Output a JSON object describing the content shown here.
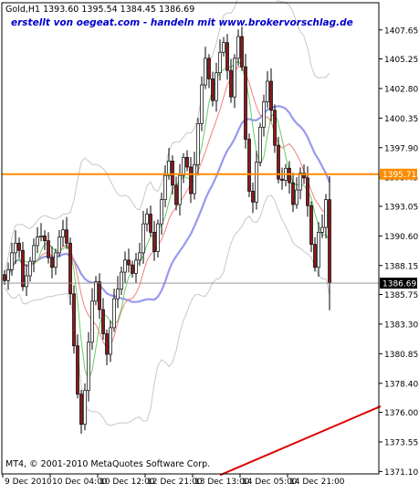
{
  "header": {
    "symbol_line": "Gold,H1  1393.60 1395.54 1384.45 1386.69",
    "watermark": "erstellt von oegeat.com - handeln mit www.brokervorschlag.de"
  },
  "footer": {
    "copyright": "MT4, © 2001-2010 MetaQuotes Software Corp."
  },
  "colors": {
    "background": "#ffffff",
    "frame": "#000000",
    "bull_candle": "#ffffff",
    "bear_candle": "#8b1a1a",
    "candle_outline": "#000000",
    "bollinger": "#c8c8c8",
    "ma_slow": "#9999ee",
    "ma_mid": "#f08080",
    "ma_fast": "#66cc66",
    "resistance_line": "#ff8c00",
    "trend_line": "#e00000",
    "watermark_text": "#0000cc",
    "price_tag_bg": "#000000",
    "price_tag_text": "#ffffff"
  },
  "chart_data": {
    "type": "candlestick",
    "symbol": "Gold",
    "timeframe": "H1",
    "ohlc_latest": {
      "open": 1393.6,
      "high": 1395.54,
      "low": 1384.45,
      "close": 1386.69
    },
    "ylim": [
      1370.9,
      1409.9
    ],
    "y_ticks": [
      1407.65,
      1405.25,
      1402.8,
      1400.35,
      1397.9,
      1395.45,
      1393.05,
      1390.6,
      1388.15,
      1385.75,
      1383.3,
      1380.85,
      1378.4,
      1376.0,
      1373.55,
      1371.1
    ],
    "y_tick_labels": [
      "1407.65",
      "1405.25",
      "1402.80",
      "1400.35",
      "1397.90",
      "1395.45",
      "1393.05",
      "1390.60",
      "1388.15",
      "1385.75",
      "1383.30",
      "1380.85",
      "1378.40",
      "1376.00",
      "1373.55",
      "1371.10"
    ],
    "x_tick_labels": [
      "9 Dec 2010",
      "10 Dec 04:00",
      "10 Dec 12:00",
      "12 Dec 21:00",
      "13 Dec 13:00",
      "14 Dec 05:00",
      "14 Dec 21:00"
    ],
    "x_tick_bars": [
      0,
      13,
      26,
      39,
      52,
      65,
      78
    ],
    "bar_count": 90,
    "closes": [
      1386.9,
      1387.8,
      1389.2,
      1390.0,
      1389.4,
      1386.4,
      1387.3,
      1388.5,
      1389.8,
      1390.5,
      1390.6,
      1390.2,
      1388.8,
      1388.0,
      1389.2,
      1390.5,
      1391.1,
      1390.0,
      1385.8,
      1381.5,
      1377.5,
      1375.0,
      1377.8,
      1381.8,
      1385.2,
      1386.8,
      1384.5,
      1382.5,
      1380.8,
      1383.0,
      1385.4,
      1386.2,
      1387.6,
      1388.6,
      1388.2,
      1387.5,
      1388.6,
      1389.2,
      1391.6,
      1392.4,
      1390.9,
      1389.3,
      1391.6,
      1393.6,
      1395.6,
      1396.8,
      1394.8,
      1393.2,
      1395.6,
      1397.1,
      1396.3,
      1394.1,
      1396.5,
      1399.9,
      1403.1,
      1405.3,
      1403.6,
      1401.8,
      1404.1,
      1405.8,
      1406.6,
      1404.3,
      1402.1,
      1405.3,
      1407.1,
      1404.6,
      1398.6,
      1394.3,
      1393.4,
      1396.7,
      1399.6,
      1401.7,
      1403.4,
      1401.0,
      1398.1,
      1395.3,
      1395.2,
      1396.2,
      1395.0,
      1393.2,
      1394.4,
      1395.8,
      1395.4,
      1393.1,
      1389.9,
      1388.0,
      1390.9,
      1391.3,
      1393.6,
      1386.69
    ],
    "current_price": 1386.69,
    "current_price_label": "1386.69",
    "resistance_level": 1395.71,
    "resistance_label": "1395.71",
    "trendline": {
      "start_bar": 59,
      "start_price": 1370.8,
      "end_bar": 103,
      "end_price": 1376.5
    },
    "indicators": [
      "Bollinger Bands",
      "Moving Average (slow)",
      "Moving Average (mid)",
      "Moving Average (fast)"
    ],
    "grid": false
  }
}
